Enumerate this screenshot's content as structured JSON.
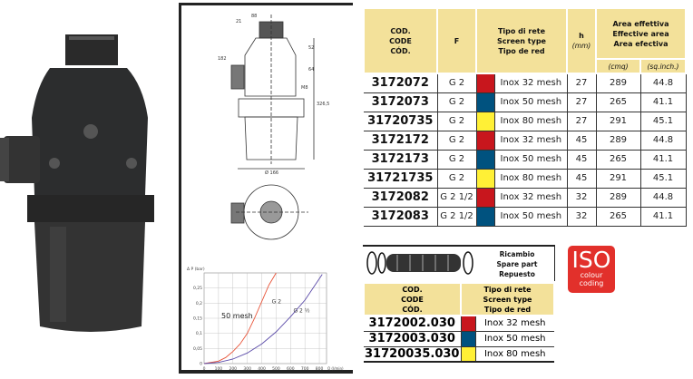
{
  "colors": {
    "red": "#c8161d",
    "blue": "#00527f",
    "yellow": "#fff036",
    "header_bg": "#f3e19a",
    "iso_red": "#e2302b"
  },
  "main_table": {
    "headers": {
      "code": [
        "COD.",
        "CODE",
        "CÓD."
      ],
      "f": "F",
      "screen": [
        "Tipo di rete",
        "Screen type",
        "Tipo de red"
      ],
      "h": "h",
      "h_unit": "(mm)",
      "area": [
        "Area effettiva",
        "Effective area",
        "Area efectiva"
      ],
      "cmq": "(cmq)",
      "sqinch": "(sq.inch.)"
    },
    "rows": [
      {
        "code": "3172072",
        "f": "G 2",
        "color": "red",
        "screen": "Inox 32 mesh",
        "h": "27",
        "cmq": "289",
        "sqinch": "44.8"
      },
      {
        "code": "3172073",
        "f": "G 2",
        "color": "blue",
        "screen": "Inox 50 mesh",
        "h": "27",
        "cmq": "265",
        "sqinch": "41.1"
      },
      {
        "code": "31720735",
        "f": "G 2",
        "color": "yellow",
        "screen": "Inox 80 mesh",
        "h": "27",
        "cmq": "291",
        "sqinch": "45.1"
      },
      {
        "code": "3172172",
        "f": "G 2",
        "color": "red",
        "screen": "Inox 32 mesh",
        "h": "45",
        "cmq": "289",
        "sqinch": "44.8"
      },
      {
        "code": "3172173",
        "f": "G 2",
        "color": "blue",
        "screen": "Inox 50 mesh",
        "h": "45",
        "cmq": "265",
        "sqinch": "41.1"
      },
      {
        "code": "31721735",
        "f": "G 2",
        "color": "yellow",
        "screen": "Inox 80 mesh",
        "h": "45",
        "cmq": "291",
        "sqinch": "45.1"
      },
      {
        "code": "3172082",
        "f": "G 2 1/2",
        "color": "red",
        "screen": "Inox 32 mesh",
        "h": "32",
        "cmq": "289",
        "sqinch": "44.8"
      },
      {
        "code": "3172083",
        "f": "G 2 1/2",
        "color": "blue",
        "screen": "Inox 50 mesh",
        "h": "32",
        "cmq": "265",
        "sqinch": "41.1"
      }
    ]
  },
  "spare": {
    "title": [
      "Ricambio",
      "Spare part",
      "Repuesto"
    ],
    "headers": {
      "code": [
        "COD.",
        "CODE",
        "CÓD."
      ],
      "screen": [
        "Tipo di rete",
        "Screen type",
        "Tipo de red"
      ]
    },
    "rows": [
      {
        "code": "3172002.030",
        "color": "red",
        "screen": "Inox 32 mesh"
      },
      {
        "code": "3172003.030",
        "color": "blue",
        "screen": "Inox 50 mesh"
      },
      {
        "code": "31720035.030",
        "color": "yellow",
        "screen": "Inox 80 mesh"
      }
    ]
  },
  "iso": {
    "big": "ISO",
    "line1": "colour",
    "line2": "coding"
  },
  "drawing": {
    "dims": [
      "88",
      "21",
      "182",
      "52",
      "64",
      "M8",
      "326,5",
      "Ø 166"
    ]
  },
  "chart_data": {
    "type": "line",
    "ylabel": "Δ P (bar)",
    "xlabel": "Q (l/min)",
    "xlim": [
      0,
      850
    ],
    "ylim": [
      0,
      0.3
    ],
    "xticks": [
      "0",
      "100",
      "200",
      "300",
      "400",
      "500",
      "600",
      "700",
      "800"
    ],
    "yticks": [
      "0",
      "0,05",
      "0,1",
      "0,15",
      "0,2",
      "0,25"
    ],
    "annotation": "50 mesh",
    "series": [
      {
        "name": "G 2",
        "color": "#e8553a",
        "x": [
          0,
          100,
          150,
          200,
          250,
          300,
          350,
          400,
          450,
          500
        ],
        "y": [
          0,
          0.008,
          0.02,
          0.04,
          0.065,
          0.1,
          0.15,
          0.205,
          0.26,
          0.31
        ]
      },
      {
        "name": "G 2 ½",
        "color": "#5a4aa8",
        "x": [
          0,
          100,
          200,
          300,
          400,
          500,
          600,
          700,
          820
        ],
        "y": [
          0,
          0.004,
          0.015,
          0.035,
          0.065,
          0.105,
          0.155,
          0.21,
          0.295
        ]
      }
    ]
  }
}
